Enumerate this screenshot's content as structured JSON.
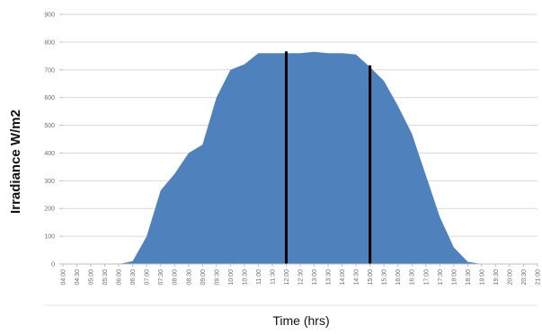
{
  "chart_data": {
    "type": "area",
    "title": "",
    "xlabel": "Time (hrs)",
    "ylabel": "Irradiance W/m2",
    "ylim": [
      0,
      900
    ],
    "yticks": [
      "0",
      "100",
      "200",
      "300",
      "400",
      "500",
      "600",
      "700",
      "800",
      "900"
    ],
    "grid": true,
    "legend": "none",
    "categories": [
      "04:00",
      "04:30",
      "05:00",
      "05:30",
      "06:00",
      "06:30",
      "07:00",
      "07:30",
      "08:00",
      "08:30",
      "09:00",
      "09:30",
      "10:00",
      "10:30",
      "11:00",
      "11:30",
      "12:00",
      "12:30",
      "13:00",
      "13:30",
      "14:00",
      "14:30",
      "15:00",
      "15:30",
      "16:00",
      "16:30",
      "17:00",
      "17:30",
      "18:00",
      "18:30",
      "19:00",
      "19:30",
      "20:00",
      "20:30",
      "21:00"
    ],
    "series": [
      {
        "values": [
          0,
          0,
          0,
          0,
          0,
          10,
          100,
          265,
          325,
          400,
          430,
          600,
          700,
          720,
          760,
          760,
          760,
          760,
          765,
          760,
          760,
          755,
          710,
          660,
          570,
          470,
          320,
          170,
          60,
          8,
          0,
          0,
          0,
          0,
          0
        ]
      }
    ],
    "vertical_markers": [
      "12:00",
      "15:00"
    ],
    "colors": {
      "area": "#4f81bd",
      "markers": "#000000",
      "grid": "#d9d9d9"
    }
  }
}
